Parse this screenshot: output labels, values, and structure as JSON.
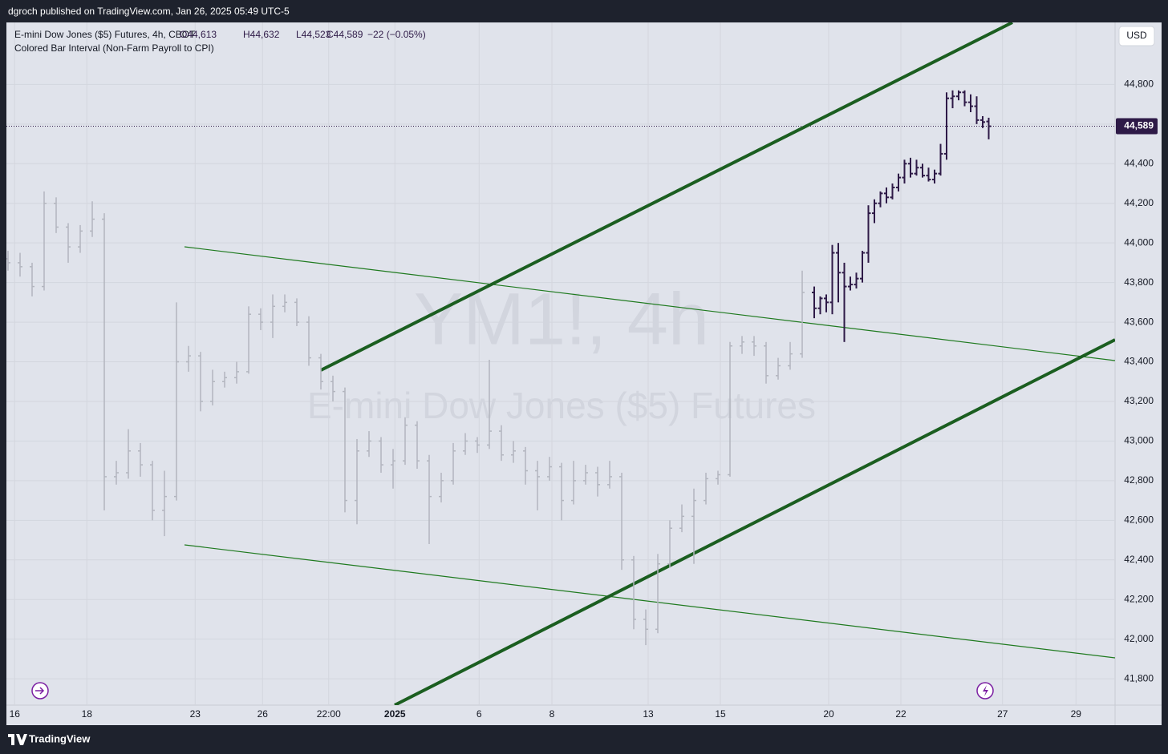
{
  "header": {
    "publisher": "dgroch published on TradingView.com, Jan 26, 2025 05:49 UTC-5"
  },
  "footer": {
    "brand": "TradingView"
  },
  "chart_data": {
    "type": "ohlc",
    "title": "E-mini Dow Jones ($5) Futures, 4h, CBOT",
    "legend_values": [
      "O44,613",
      "H44,632",
      "L44,523",
      "C44,589",
      "−22 (−0.05%)"
    ],
    "indicator": "Colored Bar Interval (Non-Farm Payroll to CPI)",
    "watermark": [
      "YM1!, 4h",
      "E-mini Dow Jones ($5) Futures"
    ],
    "currency": "USD",
    "last_price": {
      "value": 44589,
      "label": "44,589"
    },
    "last_price_color": "#2e1a47",
    "grid": true,
    "ylim": [
      41667,
      45113
    ],
    "yticks": [
      {
        "value": 41800,
        "label": "41,800"
      },
      {
        "value": 42000,
        "label": "42,000"
      },
      {
        "value": 42200,
        "label": "42,200"
      },
      {
        "value": 42400,
        "label": "42,400"
      },
      {
        "value": 42600,
        "label": "42,600"
      },
      {
        "value": 42800,
        "label": "42,800"
      },
      {
        "value": 43000,
        "label": "43,000"
      },
      {
        "value": 43200,
        "label": "43,200"
      },
      {
        "value": 43400,
        "label": "43,400"
      },
      {
        "value": 43600,
        "label": "43,600"
      },
      {
        "value": 43800,
        "label": "43,800"
      },
      {
        "value": 44000,
        "label": "44,000"
      },
      {
        "value": 44200,
        "label": "44,200"
      },
      {
        "value": 44400,
        "label": "44,400"
      },
      {
        "value": 44600,
        "label": "44,600"
      },
      {
        "value": 44800,
        "label": "44,800"
      }
    ],
    "xlim": [
      0,
      184
    ],
    "xticks": [
      {
        "value": 1.1,
        "label": "16"
      },
      {
        "value": 13.1,
        "label": "18"
      },
      {
        "value": 31.1,
        "label": "23"
      },
      {
        "value": 42.3,
        "label": "26"
      },
      {
        "value": 53.3,
        "label": "22:00"
      },
      {
        "value": 64.3,
        "label": "2025"
      },
      {
        "value": 78.3,
        "label": "6"
      },
      {
        "value": 90.4,
        "label": "8"
      },
      {
        "value": 106.4,
        "label": "13"
      },
      {
        "value": 118.4,
        "label": "15"
      },
      {
        "value": 136.4,
        "label": "20"
      },
      {
        "value": 148.4,
        "label": "22"
      },
      {
        "value": 165.3,
        "label": "27"
      },
      {
        "value": 177.5,
        "label": "29"
      }
    ],
    "series": [
      {
        "color": "#b2b5be",
        "x": [
          0,
          2,
          4,
          6,
          8,
          10,
          12,
          14,
          16,
          18,
          20,
          22,
          24,
          26,
          28,
          30,
          32,
          34,
          36,
          38,
          40,
          42,
          44,
          46,
          48,
          50,
          52,
          54,
          56,
          58,
          60,
          62,
          64,
          66,
          68,
          70,
          72,
          74,
          76,
          78,
          80,
          82,
          84,
          86,
          88,
          90,
          92,
          94,
          96,
          98,
          100,
          102,
          104,
          106,
          108,
          110,
          112,
          114,
          116,
          118,
          120,
          122,
          124,
          126,
          128,
          130,
          132
        ],
        "ohlc": [
          [
            43920,
            43960,
            43860,
            43900
          ],
          [
            43900,
            43950,
            43830,
            43880
          ],
          [
            43880,
            43900,
            43730,
            43780
          ],
          [
            43780,
            44260,
            43760,
            44200
          ],
          [
            44200,
            44230,
            44050,
            44080
          ],
          [
            44080,
            44100,
            43900,
            43980
          ],
          [
            43980,
            44090,
            43950,
            44060
          ],
          [
            44060,
            44210,
            44030,
            44120
          ],
          [
            44120,
            44150,
            42650,
            42820
          ],
          [
            42820,
            42900,
            42780,
            42840
          ],
          [
            42840,
            43060,
            42810,
            42950
          ],
          [
            42950,
            42990,
            42820,
            42880
          ],
          [
            42880,
            42900,
            42600,
            42650
          ],
          [
            42650,
            42850,
            42520,
            42720
          ],
          [
            42720,
            43700,
            42700,
            43400
          ],
          [
            43400,
            43480,
            43350,
            43430
          ],
          [
            43430,
            43450,
            43150,
            43200
          ],
          [
            43200,
            43360,
            43180,
            43300
          ],
          [
            43300,
            43350,
            43270,
            43320
          ],
          [
            43320,
            43400,
            43290,
            43350
          ],
          [
            43350,
            43680,
            43340,
            43640
          ],
          [
            43640,
            43670,
            43560,
            43600
          ],
          [
            43600,
            43740,
            43520,
            43680
          ],
          [
            43680,
            43740,
            43650,
            43700
          ],
          [
            43700,
            43720,
            43580,
            43600
          ],
          [
            43600,
            43630,
            43380,
            43420
          ],
          [
            43420,
            43440,
            43260,
            43300
          ],
          [
            43300,
            43330,
            43200,
            43250
          ],
          [
            43250,
            43270,
            42640,
            42700
          ],
          [
            42700,
            43010,
            42580,
            42950
          ],
          [
            42950,
            43050,
            42920,
            43000
          ],
          [
            43000,
            43020,
            42840,
            42880
          ],
          [
            42880,
            42960,
            42760,
            42900
          ],
          [
            42900,
            43120,
            42880,
            43080
          ],
          [
            43080,
            43100,
            42860,
            42900
          ],
          [
            42900,
            42930,
            42480,
            42720
          ],
          [
            42720,
            42840,
            42690,
            42800
          ],
          [
            42800,
            42990,
            42780,
            42950
          ],
          [
            42950,
            43040,
            42930,
            43000
          ],
          [
            43000,
            43020,
            42940,
            42980
          ],
          [
            42980,
            43410,
            42960,
            43050
          ],
          [
            43050,
            43080,
            42900,
            42930
          ],
          [
            42930,
            43000,
            42890,
            42950
          ],
          [
            42950,
            42970,
            42780,
            42850
          ],
          [
            42850,
            42900,
            42650,
            42820
          ],
          [
            42820,
            42920,
            42800,
            42870
          ],
          [
            42870,
            42890,
            42600,
            42700
          ],
          [
            42700,
            42900,
            42680,
            42800
          ],
          [
            42800,
            42880,
            42780,
            42840
          ],
          [
            42840,
            42870,
            42720,
            42780
          ],
          [
            42780,
            42900,
            42760,
            42820
          ],
          [
            42820,
            42840,
            42350,
            42400
          ],
          [
            42400,
            42420,
            42050,
            42100
          ],
          [
            42100,
            42150,
            41970,
            42050
          ],
          [
            42050,
            42430,
            42030,
            42380
          ],
          [
            42380,
            42600,
            42360,
            42560
          ],
          [
            42560,
            42680,
            42540,
            42620
          ],
          [
            42620,
            42760,
            42380,
            42700
          ],
          [
            42700,
            42840,
            42680,
            42810
          ],
          [
            42810,
            42850,
            42780,
            42830
          ],
          [
            42830,
            43500,
            42820,
            43480
          ],
          [
            43480,
            43530,
            43440,
            43500
          ],
          [
            43500,
            43530,
            43430,
            43480
          ],
          [
            43480,
            43500,
            43290,
            43330
          ],
          [
            43330,
            43420,
            43310,
            43380
          ],
          [
            43380,
            43500,
            43360,
            43440
          ],
          [
            43440,
            43860,
            43420,
            43750
          ]
        ]
      },
      {
        "color": "#2e1a47",
        "x": [
          134,
          135,
          136,
          137,
          138,
          139,
          140,
          141,
          142,
          143,
          144,
          145,
          146,
          147,
          148,
          149,
          150,
          151,
          152,
          153,
          154,
          155,
          156,
          157,
          158,
          159,
          160,
          161,
          162,
          163
        ],
        "ohlc": [
          [
            43750,
            43780,
            43620,
            43670
          ],
          [
            43670,
            43730,
            43640,
            43720
          ],
          [
            43720,
            43740,
            43650,
            43700
          ],
          [
            43700,
            43990,
            43640,
            43950
          ],
          [
            43950,
            44000,
            43700,
            43850
          ],
          [
            43850,
            43900,
            43500,
            43780
          ],
          [
            43780,
            43830,
            43760,
            43790
          ],
          [
            43790,
            43850,
            43770,
            43820
          ],
          [
            43820,
            43960,
            43800,
            43950
          ],
          [
            43950,
            44190,
            43900,
            44150
          ],
          [
            44150,
            44220,
            44100,
            44200
          ],
          [
            44200,
            44260,
            44180,
            44250
          ],
          [
            44250,
            44280,
            44200,
            44230
          ],
          [
            44230,
            44300,
            44220,
            44280
          ],
          [
            44280,
            44350,
            44260,
            44330
          ],
          [
            44330,
            44420,
            44300,
            44400
          ],
          [
            44400,
            44430,
            44330,
            44350
          ],
          [
            44350,
            44420,
            44340,
            44380
          ],
          [
            44380,
            44400,
            44330,
            44340
          ],
          [
            44340,
            44380,
            44310,
            44320
          ],
          [
            44320,
            44370,
            44300,
            44350
          ],
          [
            44350,
            44500,
            44340,
            44450
          ],
          [
            44450,
            44760,
            44420,
            44730
          ],
          [
            44730,
            44770,
            44680,
            44740
          ],
          [
            44740,
            44770,
            44720,
            44760
          ],
          [
            44760,
            44770,
            44690,
            44710
          ],
          [
            44710,
            44750,
            44660,
            44690
          ],
          [
            44690,
            44740,
            44600,
            44620
          ],
          [
            44620,
            44640,
            44580,
            44610
          ],
          [
            44613,
            44632,
            44523,
            44589
          ]
        ]
      }
    ]
  }
}
